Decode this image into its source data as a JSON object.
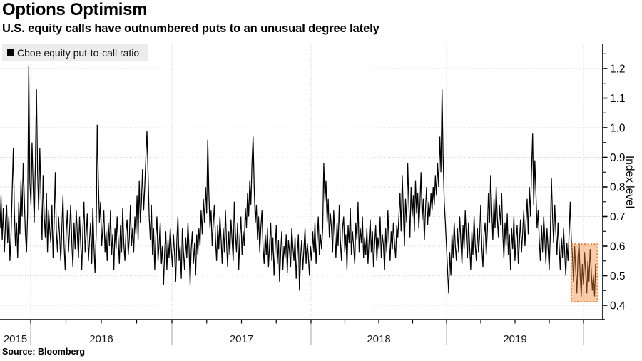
{
  "footer": {
    "source": "Source: Bloomberg"
  },
  "colors": {
    "background": "#ffffff",
    "line": "#000000",
    "grid": "#cfcfcf",
    "axis": "#000000",
    "year_boundary_tick": "#b3b3b3",
    "legend_background": "#ececec",
    "highlight_fill": "rgba(242,133,51,0.42)",
    "highlight_border": "#ed7d31",
    "text": "#000000"
  },
  "chart_data": {
    "type": "line",
    "title": "Options Optimism",
    "subtitle": "U.S. equity calls have outnumbered puts to an unusual degree lately",
    "legend_position": "top-left",
    "grid": {
      "visible": true,
      "style": "dotted"
    },
    "x_axis": {
      "tick_labels": [
        "2015",
        "2016",
        "2017",
        "2018",
        "2019"
      ]
    },
    "y_axis": {
      "title": "Index level",
      "side": "right",
      "tick_labels": [
        "1.2",
        "1.1",
        "1.0",
        "0.9",
        "0.8",
        "0.7",
        "0.6",
        "0.5",
        "0.4"
      ],
      "minor_tick_step": 0.05,
      "range": [
        0.35,
        1.28
      ]
    },
    "highlight_box": {
      "start_index": 518,
      "end_index": 539,
      "value_low": 0.412,
      "value_high": 0.607
    },
    "series": [
      {
        "name": "Cboe equity put-to-call ratio",
        "color": "#000000",
        "values": [
          0.66,
          0.77,
          0.62,
          0.73,
          0.58,
          0.68,
          0.74,
          0.61,
          0.7,
          0.55,
          0.64,
          0.78,
          0.93,
          0.72,
          0.6,
          0.68,
          0.56,
          0.75,
          0.64,
          0.82,
          0.7,
          0.88,
          0.76,
          0.64,
          0.58,
          0.71,
          1.21,
          0.82,
          0.74,
          0.95,
          0.8,
          0.68,
          0.88,
          1.13,
          0.85,
          0.72,
          0.93,
          0.78,
          0.62,
          0.84,
          0.7,
          0.63,
          0.78,
          0.58,
          0.72,
          0.66,
          0.61,
          0.74,
          0.56,
          0.68,
          0.85,
          0.65,
          0.58,
          0.7,
          0.63,
          0.55,
          0.67,
          0.77,
          0.6,
          0.52,
          0.65,
          0.72,
          0.58,
          0.66,
          0.74,
          0.61,
          0.53,
          0.68,
          0.59,
          0.72,
          0.64,
          0.56,
          0.7,
          0.61,
          0.52,
          0.66,
          0.75,
          0.58,
          0.64,
          0.71,
          0.55,
          0.62,
          0.68,
          0.54,
          0.73,
          0.6,
          0.51,
          0.64,
          1.01,
          0.82,
          0.68,
          0.75,
          0.6,
          0.66,
          0.72,
          0.58,
          0.65,
          0.55,
          0.68,
          0.6,
          0.72,
          0.57,
          0.64,
          0.52,
          0.66,
          0.59,
          0.7,
          0.62,
          0.54,
          0.67,
          0.58,
          0.73,
          0.61,
          0.55,
          0.65,
          0.69,
          0.57,
          0.63,
          0.74,
          0.6,
          0.66,
          0.58,
          0.7,
          0.64,
          0.77,
          0.62,
          0.82,
          0.68,
          0.75,
          0.86,
          0.72,
          0.8,
          0.9,
          0.99,
          0.84,
          0.7,
          0.62,
          0.74,
          0.57,
          0.66,
          0.52,
          0.63,
          0.7,
          0.55,
          0.61,
          0.68,
          0.54,
          0.6,
          0.47,
          0.58,
          0.65,
          0.52,
          0.62,
          0.56,
          0.66,
          0.59,
          0.53,
          0.64,
          0.57,
          0.48,
          0.62,
          0.7,
          0.55,
          0.6,
          0.49,
          0.66,
          0.58,
          0.52,
          0.63,
          0.56,
          0.68,
          0.6,
          0.47,
          0.59,
          0.65,
          0.54,
          0.61,
          0.5,
          0.64,
          0.57,
          0.66,
          0.6,
          0.72,
          0.64,
          0.76,
          0.68,
          0.8,
          0.71,
          0.96,
          0.78,
          0.66,
          0.72,
          0.6,
          0.68,
          0.74,
          0.62,
          0.55,
          0.67,
          0.59,
          0.7,
          0.63,
          0.54,
          0.66,
          0.58,
          0.72,
          0.61,
          0.53,
          0.65,
          0.57,
          0.69,
          0.62,
          0.55,
          0.75,
          0.64,
          0.58,
          0.68,
          0.52,
          0.63,
          0.7,
          0.57,
          0.65,
          0.6,
          0.73,
          0.66,
          0.78,
          0.7,
          0.82,
          0.74,
          0.88,
          0.97,
          0.8,
          0.68,
          0.74,
          0.62,
          0.7,
          0.58,
          0.66,
          0.72,
          0.6,
          0.54,
          0.64,
          0.57,
          0.66,
          0.53,
          0.61,
          0.68,
          0.55,
          0.63,
          0.5,
          0.59,
          0.67,
          0.54,
          0.62,
          0.48,
          0.58,
          0.65,
          0.52,
          0.6,
          0.56,
          0.64,
          0.51,
          0.62,
          0.58,
          0.53,
          0.66,
          0.6,
          0.55,
          0.63,
          0.49,
          0.57,
          0.64,
          0.45,
          0.56,
          0.62,
          0.52,
          0.59,
          0.66,
          0.54,
          0.61,
          0.57,
          0.5,
          0.6,
          0.55,
          0.65,
          0.58,
          0.68,
          0.54,
          0.62,
          0.7,
          0.57,
          0.64,
          0.59,
          0.66,
          0.88,
          0.75,
          0.82,
          0.68,
          0.76,
          0.63,
          0.71,
          0.66,
          0.58,
          0.72,
          0.64,
          0.56,
          0.68,
          0.6,
          0.74,
          0.62,
          0.55,
          0.66,
          0.7,
          0.58,
          0.64,
          0.52,
          0.67,
          0.61,
          0.73,
          0.57,
          0.65,
          0.6,
          0.54,
          0.68,
          0.62,
          0.75,
          0.58,
          0.66,
          0.61,
          0.7,
          0.56,
          0.63,
          0.57,
          0.66,
          0.54,
          0.62,
          0.69,
          0.58,
          0.65,
          0.53,
          0.61,
          0.67,
          0.55,
          0.63,
          0.59,
          0.7,
          0.56,
          0.64,
          0.6,
          0.52,
          0.66,
          0.58,
          0.72,
          0.62,
          0.55,
          0.65,
          0.59,
          0.68,
          0.61,
          0.56,
          0.67,
          0.63,
          0.7,
          0.78,
          0.65,
          0.84,
          0.72,
          0.6,
          0.76,
          0.68,
          0.88,
          0.74,
          0.63,
          0.8,
          0.7,
          0.77,
          0.65,
          0.82,
          0.71,
          0.78,
          0.66,
          0.74,
          0.85,
          0.69,
          0.76,
          0.62,
          0.72,
          0.8,
          0.67,
          0.75,
          0.7,
          0.78,
          0.72,
          0.8,
          0.74,
          0.84,
          0.77,
          0.88,
          0.8,
          0.97,
          0.85,
          1.13,
          0.9,
          0.75,
          0.68,
          0.6,
          0.52,
          0.44,
          0.58,
          0.5,
          0.64,
          0.56,
          0.68,
          0.6,
          0.55,
          0.66,
          0.58,
          0.7,
          0.62,
          0.54,
          0.67,
          0.59,
          0.72,
          0.63,
          0.56,
          0.68,
          0.6,
          0.52,
          0.65,
          0.57,
          0.7,
          0.61,
          0.55,
          0.66,
          0.58,
          0.63,
          0.74,
          0.6,
          0.53,
          0.64,
          0.68,
          0.57,
          0.65,
          0.78,
          0.68,
          0.84,
          0.72,
          0.62,
          0.76,
          0.66,
          0.8,
          0.7,
          0.63,
          0.74,
          0.67,
          0.78,
          0.64,
          0.56,
          0.68,
          0.6,
          0.71,
          0.57,
          0.64,
          0.52,
          0.66,
          0.59,
          0.7,
          0.55,
          0.63,
          0.67,
          0.54,
          0.61,
          0.69,
          0.58,
          0.65,
          0.72,
          0.6,
          0.68,
          0.76,
          0.64,
          0.8,
          0.7,
          0.85,
          0.98,
          0.74,
          0.89,
          0.78,
          0.66,
          0.72,
          0.62,
          0.55,
          0.67,
          0.58,
          0.7,
          0.63,
          0.54,
          0.66,
          0.59,
          0.52,
          0.64,
          0.83,
          0.7,
          0.61,
          0.74,
          0.65,
          0.57,
          0.68,
          0.6,
          0.52,
          0.63,
          0.56,
          0.66,
          0.58,
          0.5,
          0.61,
          0.55,
          0.64,
          0.75,
          0.62,
          0.57,
          0.48,
          0.6,
          0.52,
          0.44,
          0.56,
          0.61,
          0.5,
          0.43,
          0.54,
          0.47,
          0.58,
          0.51,
          0.44,
          0.55,
          0.48,
          0.59,
          0.52,
          0.45,
          0.5,
          0.43,
          0.54
        ]
      }
    ]
  }
}
